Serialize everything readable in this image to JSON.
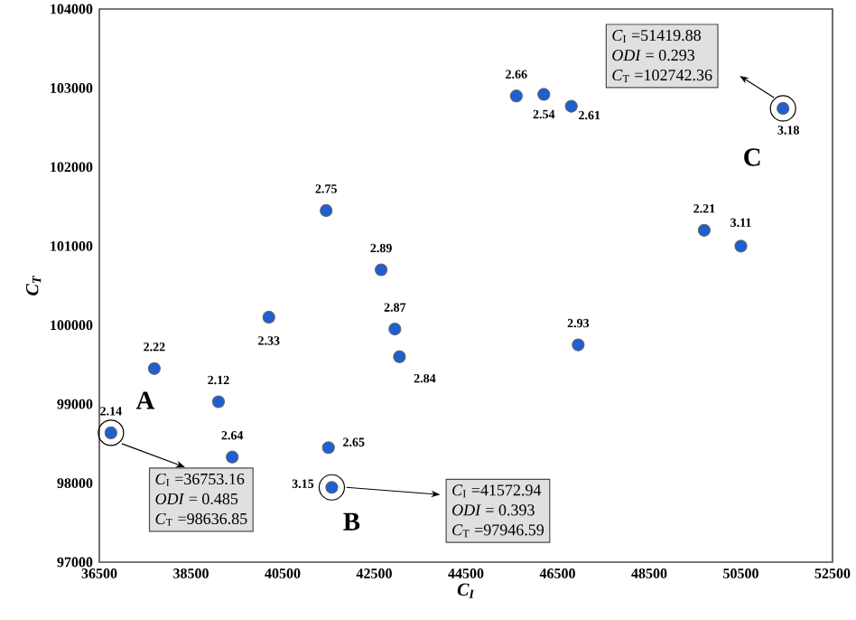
{
  "chart_data": {
    "type": "scatter",
    "xlabel": "C$_{I}$",
    "ylabel": "C$_{T}$",
    "xlim": [
      36500,
      52500
    ],
    "xticks": [
      36500,
      38500,
      40500,
      42500,
      44500,
      46500,
      48500,
      50500,
      52500
    ],
    "ylim": [
      97000,
      104000
    ],
    "yticks": [
      97000,
      98000,
      99000,
      100000,
      101000,
      102000,
      103000,
      104000
    ],
    "marker": "circle",
    "color": "#1f5fd0",
    "x": [
      36753.16,
      37700,
      39100,
      39400,
      40200,
      41450,
      41500,
      41572.94,
      42650,
      42950,
      43050,
      45600,
      46200,
      46800,
      46950,
      49700,
      50500,
      51419.88
    ],
    "values": [
      98636.85,
      99450,
      99030,
      98330,
      100100,
      101450,
      98450,
      97946.59,
      100700,
      99950,
      99600,
      102900,
      102920,
      102770,
      99750,
      101200,
      101000,
      102742.36
    ],
    "annotations": [
      {
        "text": "2.14",
        "x": 36753.16,
        "y": 98636.85
      },
      {
        "text": "2.22",
        "x": 37700,
        "y": 99450
      },
      {
        "text": "2.12",
        "x": 39100,
        "y": 99030
      },
      {
        "text": "2.64",
        "x": 39400,
        "y": 98330
      },
      {
        "text": "2.33",
        "x": 40200,
        "y": 100100
      },
      {
        "text": "2.75",
        "x": 41450,
        "y": 101450
      },
      {
        "text": "2.65",
        "x": 41500,
        "y": 98450
      },
      {
        "text": "3.15",
        "x": 41572.94,
        "y": 97946.59
      },
      {
        "text": "2.89",
        "x": 42650,
        "y": 100700
      },
      {
        "text": "2.87",
        "x": 42950,
        "y": 99950
      },
      {
        "text": "2.84",
        "x": 43050,
        "y": 99600
      },
      {
        "text": "2.66",
        "x": 45600,
        "y": 102900
      },
      {
        "text": "2.54",
        "x": 46200,
        "y": 102920
      },
      {
        "text": "2.61",
        "x": 46800,
        "y": 102770
      },
      {
        "text": "2.93",
        "x": 46950,
        "y": 99750
      },
      {
        "text": "2.21",
        "x": 49700,
        "y": 101200
      },
      {
        "text": "3.11",
        "x": 50500,
        "y": 101000
      },
      {
        "text": "3.18",
        "x": 51419.88,
        "y": 102742.36
      },
      {
        "text": "A",
        "x": 36753.16,
        "y": 98636.85
      },
      "*C*$_{I}$ =36753.16",
      "*ODI* = 0.485",
      "*C*$_{T}$ =98636.85",
      {
        "text": "B",
        "x": 41572.94,
        "y": 97946.59
      },
      "*C*$_{I}$ =41572.94",
      "*ODI* = 0.393",
      "*C*$_{T}$ =97946.59",
      {
        "text": "C",
        "x": 51419.88,
        "y": 102742.36
      },
      "*C*$_{I}$ =51419.88",
      "*ODI* = 0.293",
      "*C*$_{T}$ =102742.36"
    ]
  }
}
